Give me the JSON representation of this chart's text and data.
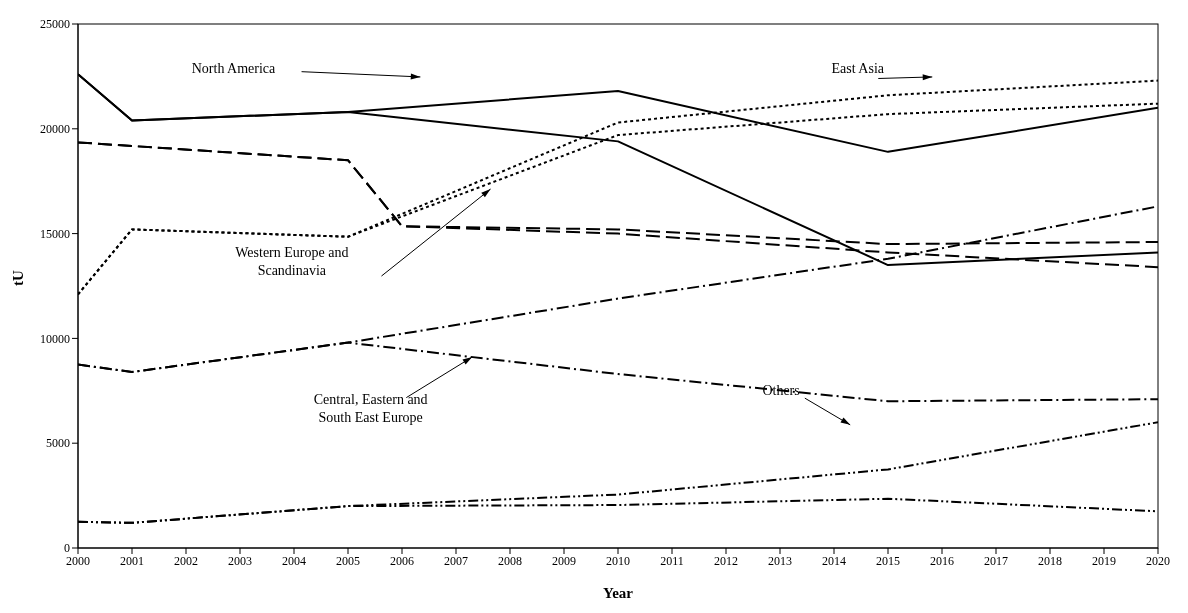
{
  "chart_data": {
    "type": "line",
    "xlabel": "Year",
    "ylabel": "tU",
    "xlim": [
      2000,
      2020
    ],
    "xticks": [
      2000,
      2001,
      2002,
      2003,
      2004,
      2005,
      2006,
      2007,
      2008,
      2009,
      2010,
      2011,
      2012,
      2013,
      2014,
      2015,
      2016,
      2017,
      2018,
      2019,
      2020
    ],
    "ylim": [
      0,
      25000
    ],
    "yticks": [
      0,
      5000,
      10000,
      15000,
      20000,
      25000
    ],
    "marker": "none",
    "series": [
      {
        "color": "#000000",
        "line_style": "solid",
        "x": [
          2000,
          2001,
          2005,
          2010,
          2015,
          2020
        ],
        "values": [
          22600,
          20400,
          20800,
          21800,
          18900,
          21000
        ]
      },
      {
        "color": "#000000",
        "line_style": "solid",
        "x": [
          2000,
          2001,
          2005,
          2010,
          2015,
          2020
        ],
        "values": [
          22600,
          20400,
          20800,
          19400,
          13500,
          14100
        ]
      },
      {
        "color": "#000000",
        "line_style": "dotted",
        "x": [
          2000,
          2001,
          2005,
          2010,
          2015,
          2020
        ],
        "values": [
          12100,
          15200,
          14850,
          20300,
          21600,
          22300
        ]
      },
      {
        "color": "#000000",
        "line_style": "dotted",
        "x": [
          2000,
          2001,
          2005,
          2010,
          2015,
          2020
        ],
        "values": [
          12100,
          15200,
          14850,
          19700,
          20700,
          21200
        ]
      },
      {
        "color": "#000000",
        "line_style": "dashed",
        "x": [
          2000,
          2005,
          2006,
          2010,
          2015,
          2020
        ],
        "values": [
          19350,
          18500,
          15350,
          15200,
          14500,
          14600
        ]
      },
      {
        "color": "#000000",
        "line_style": "dashed",
        "x": [
          2000,
          2005,
          2006,
          2010,
          2015,
          2020
        ],
        "values": [
          19350,
          18500,
          15350,
          15000,
          14100,
          13400
        ]
      },
      {
        "color": "#000000",
        "line_style": "dashdot",
        "x": [
          2000,
          2001,
          2005,
          2010,
          2015,
          2020
        ],
        "values": [
          8750,
          8400,
          9800,
          11900,
          13800,
          16300
        ]
      },
      {
        "color": "#000000",
        "line_style": "dashdot",
        "x": [
          2000,
          2001,
          2005,
          2010,
          2015,
          2020
        ],
        "values": [
          8750,
          8400,
          9800,
          8300,
          7000,
          7100
        ]
      },
      {
        "color": "#000000",
        "line_style": "dashdotdot",
        "x": [
          2000,
          2001,
          2005,
          2010,
          2015,
          2020
        ],
        "values": [
          1250,
          1200,
          2000,
          2550,
          3750,
          6000
        ]
      },
      {
        "color": "#000000",
        "line_style": "dashdotdot",
        "x": [
          2000,
          2001,
          2005,
          2010,
          2015,
          2020
        ],
        "values": [
          1250,
          1200,
          2000,
          2050,
          2350,
          1750
        ]
      }
    ],
    "annotations": [
      "North America",
      "East Asia",
      "Western Europe and Scandinavia",
      {
        "text": "Central, Eastern and South East Europe",
        "x": 2007.3,
        "y": 9110
      },
      "Others"
    ]
  }
}
